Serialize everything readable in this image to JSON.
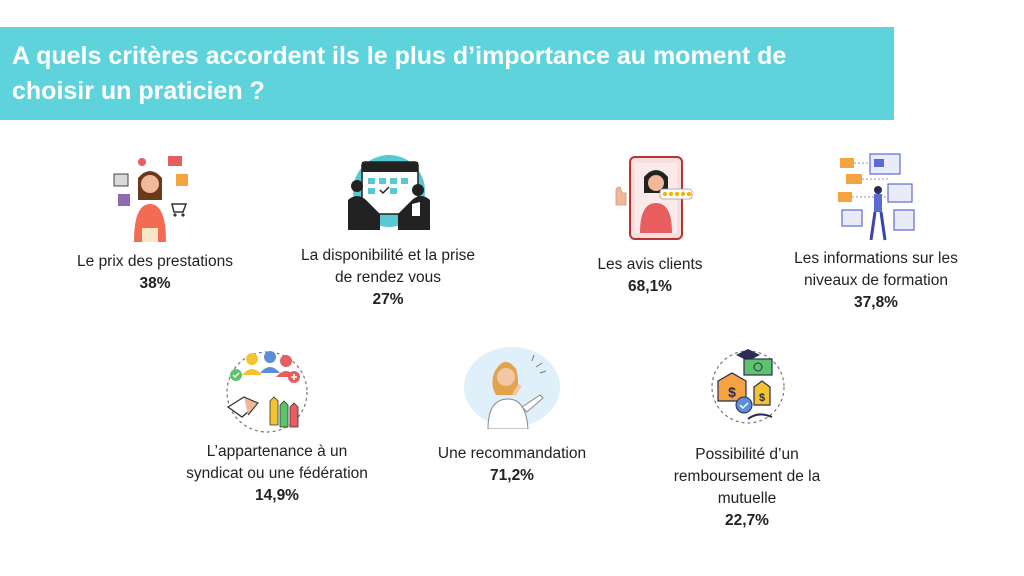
{
  "title": "A quels critères accordent ils le plus d’importance au moment de choisir un praticien ?",
  "colors": {
    "banner": "#5ed3dc",
    "text": "#222222",
    "title_text": "#ffffff"
  },
  "criteria": [
    {
      "icon": "woman-with-prices-icon",
      "label": "Le prix des prestations",
      "value": "38%"
    },
    {
      "icon": "calendar-handshake-icon",
      "label": "La disponibilité et la prise de rendez vous",
      "value": "27%"
    },
    {
      "icon": "phone-review-icon",
      "label": "Les avis clients",
      "value": "68,1%"
    },
    {
      "icon": "training-dashboard-icon",
      "label": "Les informations sur les niveaux de formation",
      "value": "37,8%"
    },
    {
      "icon": "union-group-icon",
      "label": "L’appartenance à un syndicat ou une fédération",
      "value": "14,9%"
    },
    {
      "icon": "woman-pointing-icon",
      "label": "Une recommandation",
      "value": "71,2%"
    },
    {
      "icon": "money-refund-icon",
      "label": "Possibilité d’un remboursement de la mutuelle",
      "value": "22,7%"
    }
  ]
}
